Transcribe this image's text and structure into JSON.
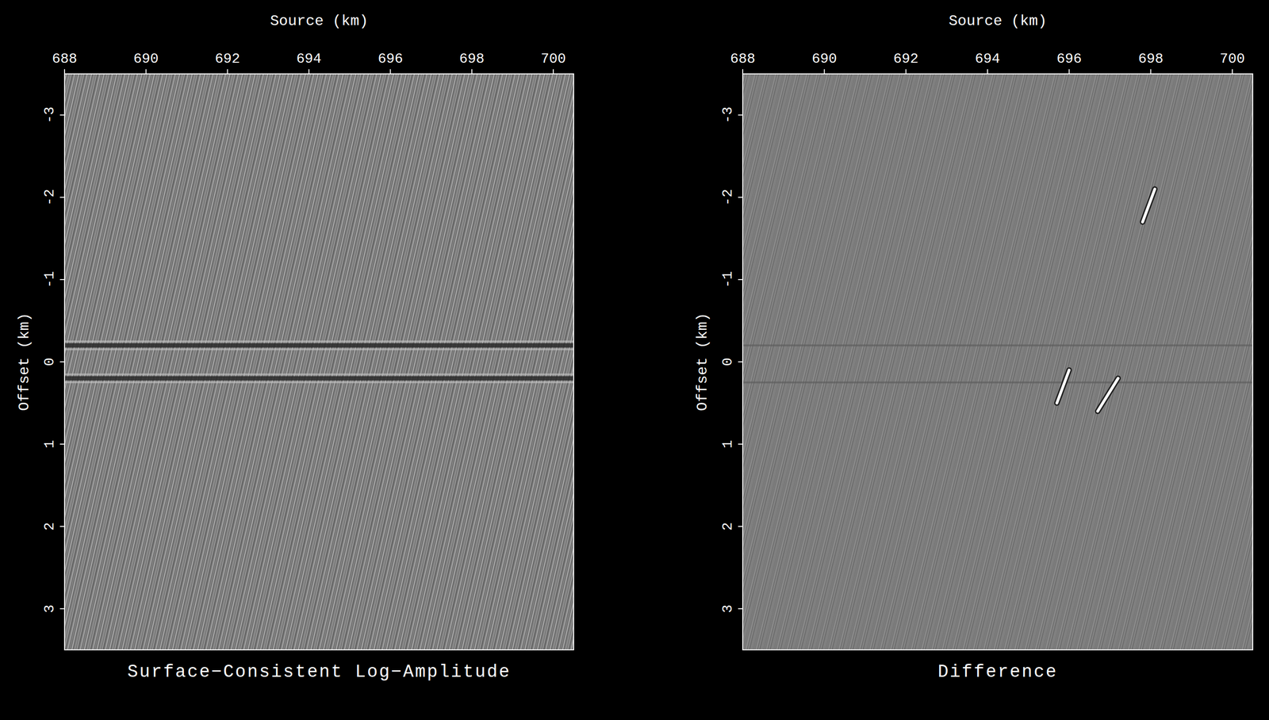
{
  "chart_data": [
    {
      "type": "image",
      "title": "Surface−Consistent Log−Amplitude",
      "x_label": "Source (km)",
      "y_label": "Offset (km)",
      "xlim": [
        688,
        700.5
      ],
      "ylim": [
        -3.5,
        3.5
      ],
      "xticks": [
        688,
        690,
        692,
        694,
        696,
        698,
        700
      ],
      "yticks": [
        -3,
        -2,
        -1,
        0,
        1,
        2,
        3
      ],
      "horizontal_events": [
        -0.2,
        0.2
      ],
      "color": "#2a2a2a",
      "streaks": []
    },
    {
      "type": "image",
      "title": "Difference",
      "x_label": "Source (km)",
      "y_label": "Offset (km)",
      "xlim": [
        688,
        700.5
      ],
      "ylim": [
        -3.5,
        3.5
      ],
      "xticks": [
        688,
        690,
        692,
        694,
        696,
        698,
        700
      ],
      "yticks": [
        -3,
        -2,
        -1,
        0,
        1,
        2,
        3
      ],
      "horizontal_events": [
        -0.2,
        0.25
      ],
      "color": "#5e5e5e",
      "streaks": [
        {
          "x": [
            698.1,
            697.8
          ],
          "y": [
            -2.1,
            -1.7
          ]
        },
        {
          "x": [
            696.0,
            695.7
          ],
          "y": [
            0.1,
            0.5
          ]
        },
        {
          "x": [
            697.2,
            696.7
          ],
          "y": [
            0.2,
            0.6
          ]
        }
      ]
    }
  ]
}
